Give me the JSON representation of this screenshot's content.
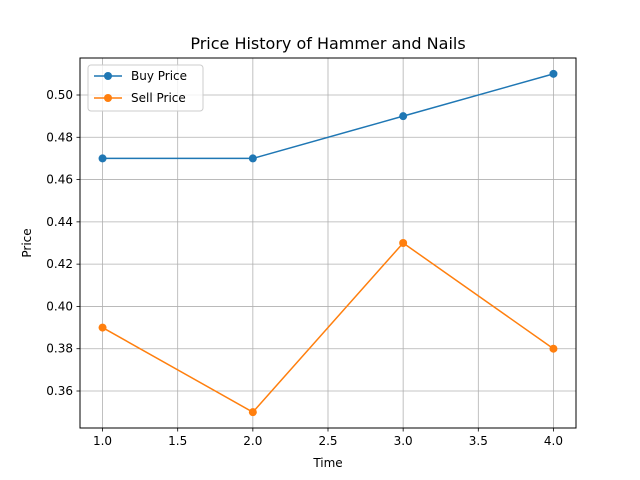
{
  "chart_data": {
    "type": "line",
    "title": "Price History of Hammer and Nails",
    "xlabel": "Time",
    "ylabel": "Price",
    "xlim": [
      0.85,
      4.15
    ],
    "ylim": [
      0.3425,
      0.5175
    ],
    "xticks": [
      1.0,
      1.5,
      2.0,
      2.5,
      3.0,
      3.5,
      4.0
    ],
    "xtick_labels": [
      "1.0",
      "1.5",
      "2.0",
      "2.5",
      "3.0",
      "3.5",
      "4.0"
    ],
    "yticks": [
      0.36,
      0.38,
      0.4,
      0.42,
      0.44,
      0.46,
      0.48,
      0.5
    ],
    "ytick_labels": [
      "0.36",
      "0.38",
      "0.40",
      "0.42",
      "0.44",
      "0.46",
      "0.48",
      "0.50"
    ],
    "grid": true,
    "legend_position": "top-left",
    "x": [
      1,
      2,
      3,
      4
    ],
    "series": [
      {
        "name": "Buy Price",
        "color": "#1f77b4",
        "marker": "circle",
        "values": [
          0.47,
          0.47,
          0.49,
          0.51
        ]
      },
      {
        "name": "Sell Price",
        "color": "#ff7f0e",
        "marker": "circle",
        "values": [
          0.39,
          0.35,
          0.43,
          0.38
        ]
      }
    ]
  }
}
